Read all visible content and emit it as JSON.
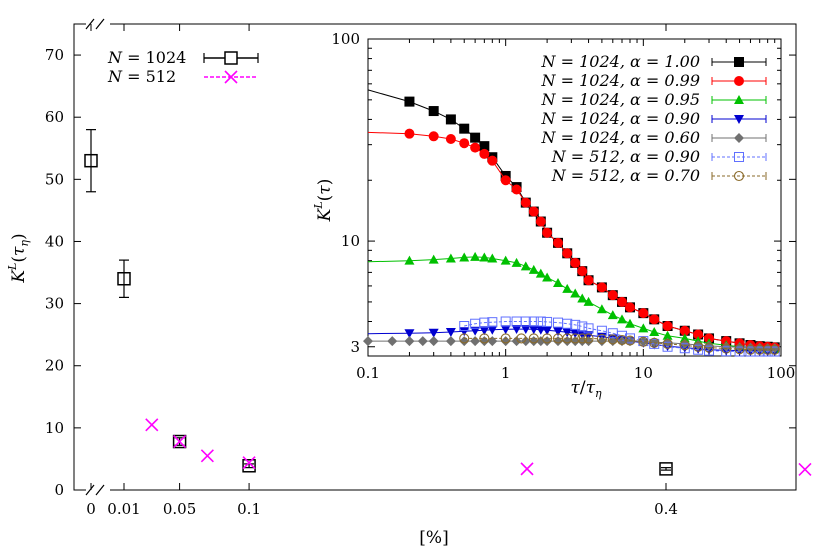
{
  "chart_data": [
    {
      "type": "scatter",
      "xlabel": "[%]",
      "ylabel": "K^L(τ_η)",
      "ylim": [
        0,
        75
      ],
      "yticks": [
        "0",
        "10",
        "20",
        "30",
        "40",
        "50",
        "60",
        "70"
      ],
      "xticks": [
        {
          "value": 0,
          "label": "0"
        },
        {
          "value": 0.01,
          "label": "0.01"
        },
        {
          "value": 0.05,
          "label": "0.05"
        },
        {
          "value": 0.1,
          "label": "0.1"
        },
        {
          "value": 0.4,
          "label": "0.4"
        }
      ],
      "axis_break": "x between 0 and 0.01",
      "legend_position": "top-left",
      "series": [
        {
          "name": "N = 1024",
          "marker": "open-square",
          "color": "#000000",
          "points": [
            {
              "x": 0,
              "y": 53,
              "err": 5
            },
            {
              "x": 0.01,
              "y": 34,
              "err": 3
            },
            {
              "x": 0.05,
              "y": 7.8,
              "err": 0.6
            },
            {
              "x": 0.1,
              "y": 3.9,
              "err": 0.3
            },
            {
              "x": 0.4,
              "y": 3.4,
              "err": 0.2
            }
          ]
        },
        {
          "name": "N = 512",
          "marker": "cross",
          "color": "#ff00ff",
          "points": [
            {
              "x": 0.03,
              "y": 10.5
            },
            {
              "x": 0.05,
              "y": 7.8
            },
            {
              "x": 0.07,
              "y": 5.5
            },
            {
              "x": 0.1,
              "y": 4.4
            },
            {
              "x": 0.3,
              "y": 3.4
            },
            {
              "x": 0.5,
              "y": 3.3
            }
          ]
        }
      ]
    },
    {
      "type": "line",
      "xlabel": "τ/τ_η",
      "ylabel": "K^L(τ)",
      "x_scale": "log",
      "y_scale": "log",
      "xlim": [
        0.1,
        100
      ],
      "ylim": [
        2.7,
        100
      ],
      "xticks": [
        "0.1",
        "1",
        "10",
        "100"
      ],
      "yticks": [
        "3",
        "10",
        "100"
      ],
      "legend_position": "top-right",
      "series": [
        {
          "name": "N = 1024, α = 1.00",
          "color": "#000000",
          "marker": "filled-square",
          "x": [
            0.2,
            0.3,
            0.4,
            0.5,
            0.6,
            0.7,
            0.8,
            1.0,
            1.2,
            1.4,
            1.6,
            1.8,
            2.0,
            2.4,
            2.8,
            3.2,
            3.6,
            4.0,
            5,
            6,
            7,
            8,
            10,
            12,
            15,
            20,
            25,
            30,
            40,
            50,
            60,
            70,
            80,
            90
          ],
          "y": [
            49,
            44,
            40,
            36,
            32.5,
            29.5,
            26,
            21,
            18.5,
            15.5,
            14,
            12.5,
            11,
            9.8,
            8.7,
            7.8,
            7.1,
            6.4,
            5.9,
            5.4,
            5.0,
            4.7,
            4.4,
            4.1,
            3.8,
            3.6,
            3.45,
            3.3,
            3.2,
            3.12,
            3.06,
            3.02,
            3.0,
            2.98
          ]
        },
        {
          "name": "N = 1024, α = 0.99",
          "color": "#ff0000",
          "marker": "filled-circle",
          "x": [
            0.2,
            0.3,
            0.4,
            0.5,
            0.6,
            0.7,
            0.8,
            1.0,
            1.2,
            1.4,
            1.6,
            1.8,
            2.0,
            2.4,
            2.8,
            3.2,
            3.6,
            4.0,
            5,
            6,
            7,
            8,
            10,
            12,
            15,
            20,
            25,
            30,
            40,
            50,
            60,
            70,
            80,
            90
          ],
          "y": [
            34,
            33,
            32,
            30.5,
            29,
            27,
            25,
            20,
            18,
            15.5,
            14,
            12.5,
            11,
            9.8,
            8.7,
            7.8,
            7.1,
            6.4,
            5.9,
            5.4,
            5.0,
            4.7,
            4.4,
            4.1,
            3.8,
            3.6,
            3.45,
            3.3,
            3.2,
            3.12,
            3.06,
            3.02,
            3.0,
            2.98
          ]
        },
        {
          "name": "N = 1024, α = 0.95",
          "color": "#00c000",
          "marker": "filled-triangle-up",
          "x": [
            0.2,
            0.3,
            0.4,
            0.5,
            0.6,
            0.7,
            0.8,
            1.0,
            1.2,
            1.4,
            1.6,
            1.8,
            2.0,
            2.4,
            2.8,
            3.2,
            3.6,
            4.0,
            5,
            6,
            7,
            8,
            10,
            12,
            15,
            20,
            25,
            30,
            40,
            50,
            60,
            70,
            80,
            90
          ],
          "y": [
            8.0,
            8.1,
            8.2,
            8.3,
            8.35,
            8.3,
            8.2,
            8.0,
            7.8,
            7.5,
            7.2,
            6.9,
            6.6,
            6.2,
            5.8,
            5.5,
            5.2,
            5.0,
            4.6,
            4.3,
            4.1,
            3.9,
            3.7,
            3.55,
            3.4,
            3.3,
            3.2,
            3.12,
            3.05,
            3.0,
            2.97,
            2.95,
            2.93,
            2.92
          ]
        },
        {
          "name": "N = 1024, α = 0.90",
          "color": "#0000d0",
          "marker": "filled-triangle-down",
          "x": [
            0.2,
            0.3,
            0.4,
            0.5,
            0.6,
            0.7,
            0.8,
            1.0,
            1.2,
            1.4,
            1.6,
            1.8,
            2.0,
            2.4,
            2.8,
            3.2,
            3.6,
            4.0,
            5,
            6,
            7,
            8,
            10,
            12,
            15,
            20,
            25,
            30,
            40,
            50,
            60,
            70,
            80,
            90
          ],
          "y": [
            3.5,
            3.52,
            3.55,
            3.58,
            3.6,
            3.62,
            3.64,
            3.66,
            3.67,
            3.67,
            3.66,
            3.64,
            3.62,
            3.58,
            3.54,
            3.5,
            3.46,
            3.42,
            3.36,
            3.3,
            3.25,
            3.2,
            3.14,
            3.08,
            3.02,
            2.97,
            2.93,
            2.9,
            2.88,
            2.87,
            2.86,
            2.86,
            2.86,
            2.86
          ]
        },
        {
          "name": "N = 1024, α = 0.60",
          "color": "#707070",
          "marker": "filled-diamond",
          "x": [
            0.1,
            0.15,
            0.2,
            0.25,
            0.3,
            0.4,
            0.5,
            0.6,
            0.7,
            0.8,
            1.0,
            1.2,
            1.4,
            1.6,
            1.8,
            2.0,
            2.4,
            2.8,
            3.2,
            3.6,
            4.0,
            5,
            6,
            7,
            8,
            10,
            12,
            15,
            20,
            25,
            30,
            40,
            50,
            60,
            70,
            80,
            90
          ],
          "y": [
            3.2,
            3.2,
            3.2,
            3.2,
            3.2,
            3.2,
            3.2,
            3.2,
            3.2,
            3.2,
            3.2,
            3.2,
            3.2,
            3.2,
            3.2,
            3.2,
            3.2,
            3.2,
            3.2,
            3.2,
            3.2,
            3.2,
            3.2,
            3.2,
            3.2,
            3.18,
            3.16,
            3.14,
            3.1,
            3.06,
            3.03,
            3.0,
            2.98,
            2.97,
            2.96,
            2.95,
            2.95
          ]
        },
        {
          "name": "N = 512,   α = 0.90",
          "color": "#6070ff",
          "marker": "open-square",
          "x": [
            0.5,
            0.6,
            0.7,
            0.8,
            1.0,
            1.2,
            1.4,
            1.6,
            1.8,
            2.0,
            2.4,
            2.8,
            3.2,
            3.6,
            4.0,
            5,
            6,
            7,
            8,
            10,
            12,
            15,
            20,
            25,
            30,
            40,
            50,
            60,
            70,
            80,
            90
          ],
          "y": [
            3.8,
            3.9,
            3.95,
            3.97,
            4.0,
            4.0,
            4.0,
            4.0,
            4.0,
            3.98,
            3.95,
            3.9,
            3.85,
            3.78,
            3.7,
            3.6,
            3.5,
            3.4,
            3.3,
            3.2,
            3.1,
            3.0,
            2.95,
            2.9,
            2.87,
            2.85,
            2.84,
            2.84,
            2.84,
            2.84,
            2.84
          ]
        },
        {
          "name": "N = 512,   α = 0.70",
          "color": "#8a6a2a",
          "marker": "open-circle",
          "x": [
            0.5,
            0.7,
            1.0,
            1.3,
            1.6,
            2.0,
            2.4,
            2.8,
            3.2,
            3.6,
            4.0,
            5,
            6,
            7,
            8,
            10,
            12,
            15,
            20,
            25,
            30,
            40,
            50,
            60,
            70,
            80,
            90
          ],
          "y": [
            3.3,
            3.3,
            3.3,
            3.3,
            3.3,
            3.3,
            3.3,
            3.3,
            3.3,
            3.3,
            3.3,
            3.28,
            3.26,
            3.24,
            3.22,
            3.18,
            3.14,
            3.1,
            3.05,
            3.0,
            2.97,
            2.94,
            2.92,
            2.9,
            2.9,
            2.9,
            2.9
          ]
        }
      ]
    }
  ]
}
